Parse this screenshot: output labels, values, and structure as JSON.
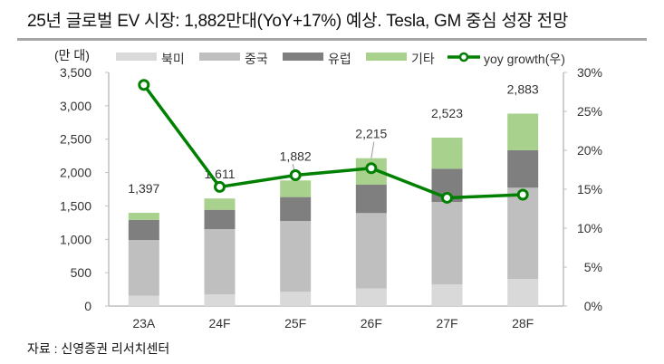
{
  "title": "25년 글로벌 EV 시장: 1,882만대(YoY+17%) 예상. Tesla, GM 중심 성장 전망",
  "source": "자료 : 신영증권 리서치센터",
  "chart_data": {
    "type": "bar",
    "stacked": true,
    "left_unit_label": "(만 대)",
    "categories": [
      "23A",
      "24F",
      "25F",
      "26F",
      "27F",
      "28F"
    ],
    "series": [
      {
        "name": "북미",
        "color": "#d9d9d9",
        "values": [
          155,
          176,
          213,
          262,
          326,
          407
        ]
      },
      {
        "name": "중국",
        "color": "#bfbfbf",
        "values": [
          835,
          977,
          1062,
          1131,
          1234,
          1366
        ]
      },
      {
        "name": "유럽",
        "color": "#7f7f7f",
        "values": [
          300,
          289,
          358,
          425,
          498,
          561
        ]
      },
      {
        "name": "기타",
        "color": "#a9d18e",
        "values": [
          107,
          169,
          249,
          397,
          465,
          549
        ]
      }
    ],
    "totals": [
      "1,397",
      "1,611",
      "1,882",
      "2,215",
      "2,523",
      "2,883"
    ],
    "line_series": {
      "name": "yoy growth(우)",
      "color": "#008000",
      "axis": "right",
      "unit": "%",
      "values": [
        28.4,
        15.3,
        16.8,
        17.7,
        13.9,
        14.3
      ]
    },
    "ylim": [
      0,
      3500
    ],
    "yticks": [
      "0",
      "500",
      "1,000",
      "1,500",
      "2,000",
      "2,500",
      "3,000",
      "3,500"
    ],
    "y2lim": [
      0,
      30
    ],
    "y2ticks": [
      "0%",
      "5%",
      "10%",
      "15%",
      "20%",
      "25%",
      "30%"
    ],
    "grid": false,
    "legend_position": "top"
  }
}
